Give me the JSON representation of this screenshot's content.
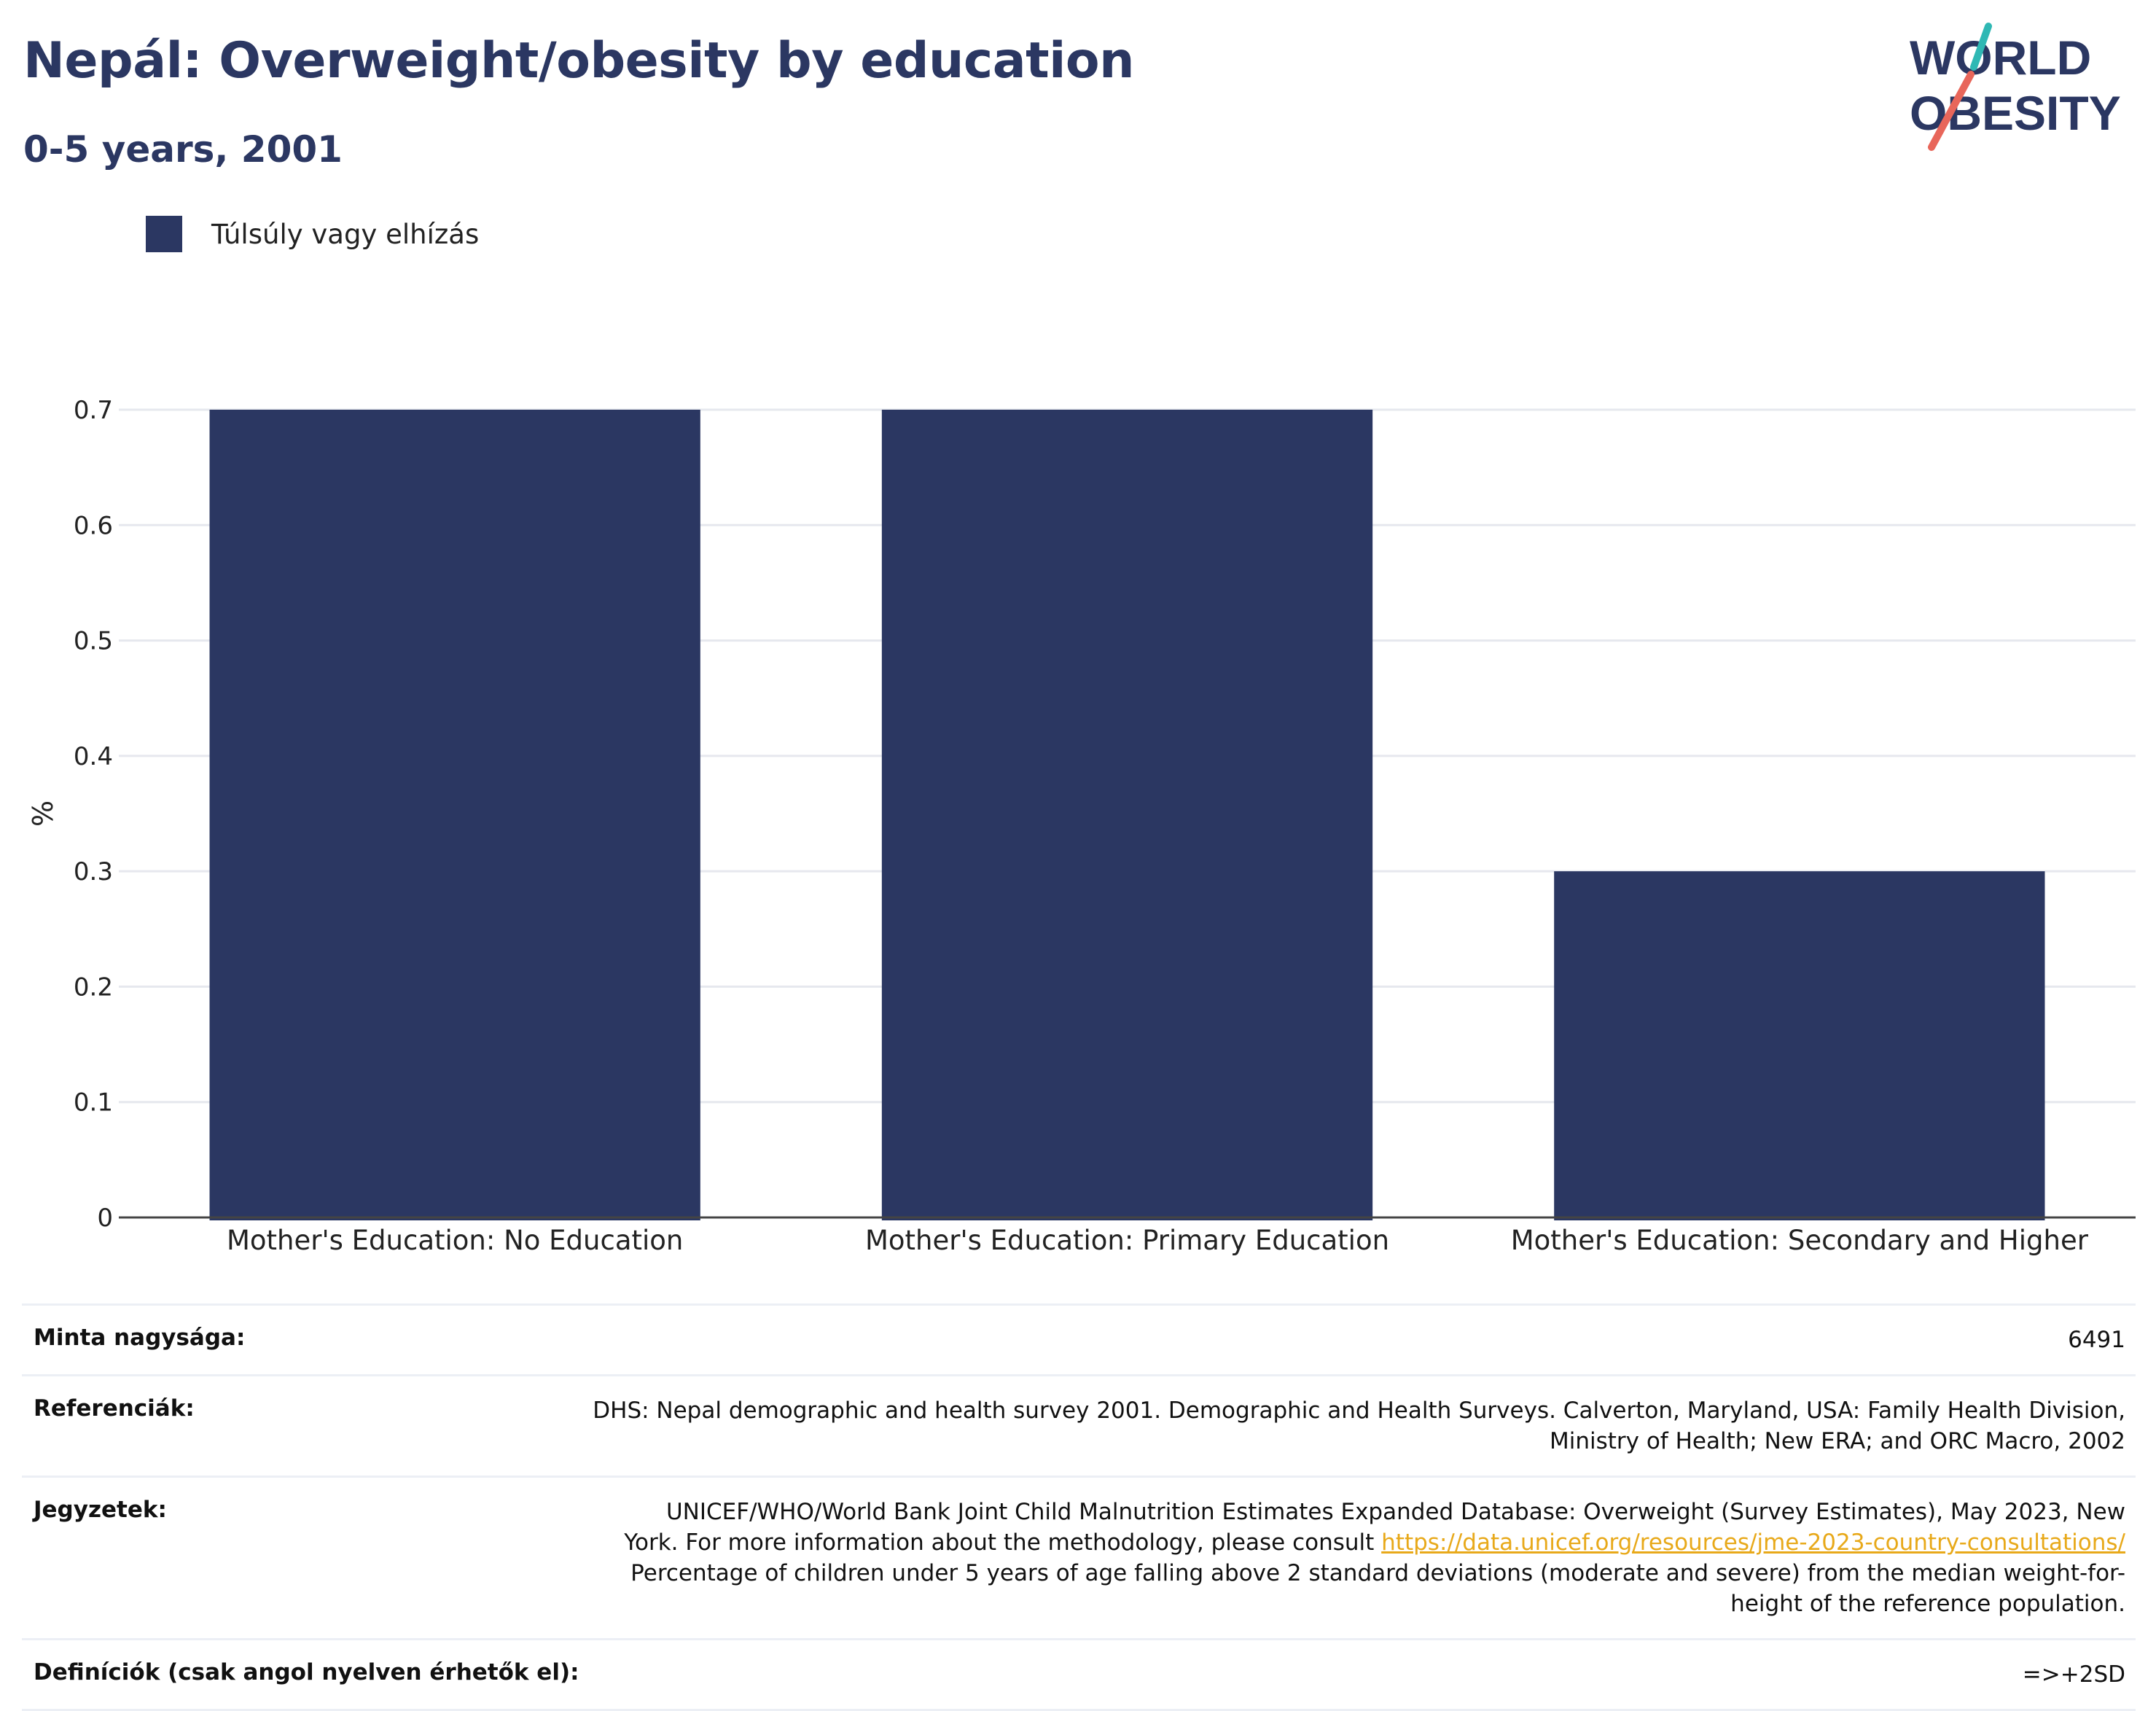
{
  "header": {
    "title": "Nepál: Overweight/obesity by education",
    "subtitle": "0-5 years, 2001"
  },
  "logo": {
    "line1": "WORLD",
    "line2": "OBESITY"
  },
  "colors": {
    "bar": "#2b3762",
    "accent_teal": "#2fb8b4",
    "accent_red": "#e8665a",
    "link": "#e8a91a"
  },
  "chart_data": {
    "type": "bar",
    "categories": [
      "Mother's Education: No Education",
      "Mother's Education: Primary Education",
      "Mother's Education: Secondary and Higher"
    ],
    "series": [
      {
        "name": "Túlsúly vagy elhízás",
        "values": [
          0.7,
          0.7,
          0.3
        ]
      }
    ],
    "xlabel": "",
    "ylabel": "%",
    "ylim": [
      0,
      0.7
    ],
    "yticks": [
      "0",
      "0.1",
      "0.2",
      "0.3",
      "0.4",
      "0.5",
      "0.6",
      "0.7"
    ],
    "grid": true,
    "legend": "top-left"
  },
  "info": {
    "sample_label": "Minta nagysága:",
    "sample_value": "6491",
    "refs_label": "Referenciák:",
    "refs_line1": "DHS: Nepal demographic and health survey 2001. Demographic and Health Surveys. Calverton, Maryland, USA: Family Health Division,",
    "refs_line2": "Ministry of Health; New ERA; and ORC Macro, 2002",
    "notes_label": "Jegyzetek:",
    "notes_line1": "UNICEF/WHO/World Bank Joint Child Malnutrition Estimates Expanded Database: Overweight (Survey Estimates), May 2023, New",
    "notes_line2_pre": "York. For more information about the methodology, please consult ",
    "notes_link": "https://data.unicef.org/resources/jme-2023-country-consultations/",
    "notes_line3": "Percentage of children under 5 years of age falling above 2 standard deviations (moderate and severe) from the median weight-for-",
    "notes_line4": "height of the reference population.",
    "defs_label": "Definíciók (csak angol nyelven érhetők el):",
    "defs_value": "=>+2SD"
  }
}
